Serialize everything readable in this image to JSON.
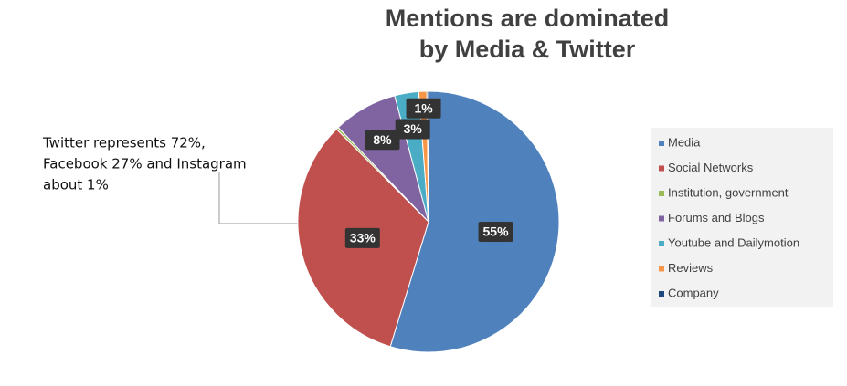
{
  "chart_data": {
    "type": "pie",
    "title": [
      "Mentions are dominated",
      "by Media & Twitter"
    ],
    "categories": [
      "Media",
      "Social Networks",
      "Institution, government",
      "Forums and Blogs",
      "Youtube and Dailymotion",
      "Reviews",
      "Company"
    ],
    "values": [
      55,
      33,
      0.3,
      8,
      3,
      1,
      0.2
    ],
    "value_labels": [
      "55%",
      "33%",
      null,
      "8%",
      "3%",
      "1%",
      null
    ],
    "colors": [
      "#4f81bd",
      "#c0504d",
      "#9bbb59",
      "#8064a2",
      "#4bacc6",
      "#f79646",
      "#1f497d"
    ],
    "annotation": [
      "Twitter represents 72%,",
      "Facebook 27% and Instagram",
      "about 1%"
    ],
    "legend": "right"
  }
}
